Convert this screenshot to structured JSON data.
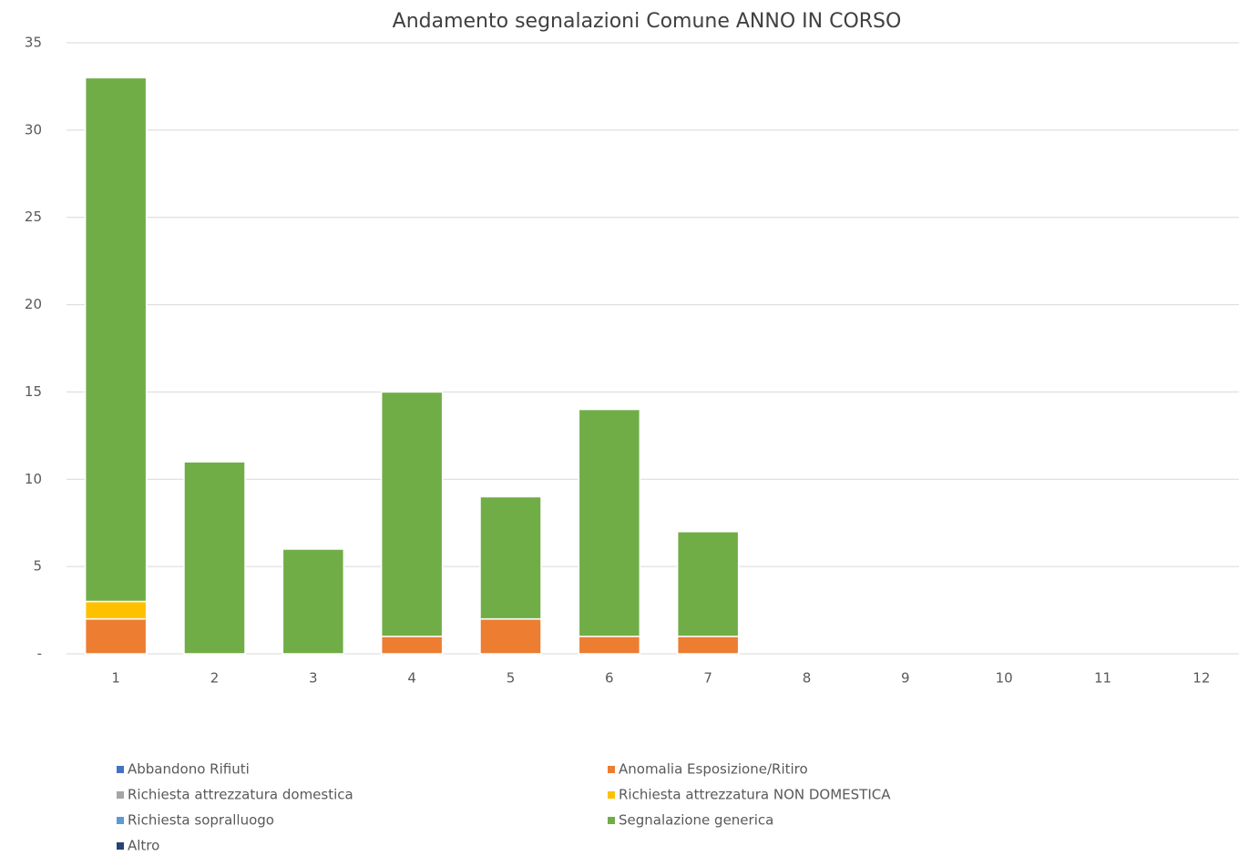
{
  "chart_data": {
    "type": "stacked-bar",
    "title": "Andamento segnalazioni Comune ANNO IN CORSO",
    "categories": [
      "1",
      "2",
      "3",
      "4",
      "5",
      "6",
      "7",
      "8",
      "9",
      "10",
      "11",
      "12"
    ],
    "series": [
      {
        "name": "Abbandono Rifiuti",
        "color": "#4472c4",
        "values": [
          0,
          0,
          0,
          0,
          0,
          0,
          0,
          0,
          0,
          0,
          0,
          0
        ]
      },
      {
        "name": "Anomalia Esposizione/Ritiro",
        "color": "#ed7d31",
        "values": [
          2,
          0,
          0,
          1,
          2,
          1,
          1,
          0,
          0,
          0,
          0,
          0
        ]
      },
      {
        "name": "Richiesta attrezzatura domestica",
        "color": "#a5a5a5",
        "values": [
          0,
          0,
          0,
          0,
          0,
          0,
          0,
          0,
          0,
          0,
          0,
          0
        ]
      },
      {
        "name": "Richiesta attrezzatura NON DOMESTICA",
        "color": "#ffc000",
        "values": [
          1,
          0,
          0,
          0,
          0,
          0,
          0,
          0,
          0,
          0,
          0,
          0
        ]
      },
      {
        "name": "Richiesta sopralluogo",
        "color": "#5b9bd5",
        "values": [
          0,
          0,
          0,
          0,
          0,
          0,
          0,
          0,
          0,
          0,
          0,
          0
        ]
      },
      {
        "name": "Segnalazione generica",
        "color": "#70ad47",
        "values": [
          30,
          11,
          6,
          14,
          7,
          13,
          6,
          0,
          0,
          0,
          0,
          0
        ]
      },
      {
        "name": "Altro",
        "color": "#264478",
        "values": [
          0,
          0,
          0,
          0,
          0,
          0,
          0,
          0,
          0,
          0,
          0,
          0
        ]
      }
    ],
    "ylim": [
      0,
      35
    ],
    "yticks": [
      {
        "value": 0,
        "label": "-"
      },
      5,
      10,
      15,
      20,
      25,
      30,
      35
    ],
    "grid": true
  }
}
